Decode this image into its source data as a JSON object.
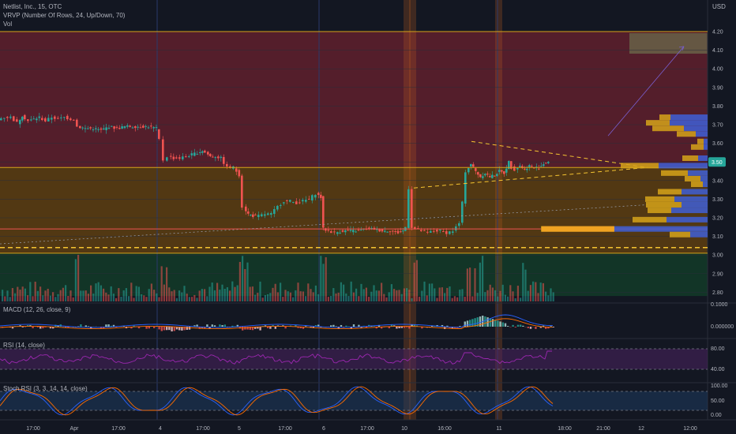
{
  "header": {
    "title": "Netlist, Inc., 15, OTC",
    "indicator_vrvp": "VRVP (Number Of Rows, 24, Up/Down, 70)",
    "indicator_vol": "Vol",
    "currency": "USD"
  },
  "panes": {
    "macd_label": "MACD (12, 26, close, 9)",
    "rsi_label": "RSI (14, close)",
    "stoch_label": "Stoch RSI (3, 3, 14, 14, close)"
  },
  "colors": {
    "background": "#131722",
    "up": "#26a69a",
    "down": "#ef5350",
    "red_zone": "#5c1f2c",
    "orange_zone": "#5a3c12",
    "green_zone": "#133828",
    "vp_up": "#3f5fd6",
    "vp_down": "#d6a31a",
    "poc_zone": "#f5a524",
    "current_price_badge": "#26a69a"
  },
  "chart_data": [
    {
      "type": "candlestick",
      "symbol": "Netlist, Inc.",
      "interval": "15",
      "exchange": "OTC",
      "y_ticks": [
        "4.20",
        "4.10",
        "4.00",
        "3.90",
        "3.80",
        "3.70",
        "3.60",
        "3.50",
        "3.40",
        "3.30",
        "3.20",
        "3.10",
        "3.00",
        "2.90",
        "2.80"
      ],
      "ylim": [
        2.78,
        4.26
      ],
      "x_ticks": [
        "17:00",
        "Apr",
        "17:00",
        "4",
        "17:00",
        "5",
        "17:00",
        "6",
        "17:00",
        "10",
        "16:00",
        "11",
        "18:00",
        "21:00",
        "12",
        "12:00"
      ],
      "current_price": "3.50",
      "price_path": [
        [
          0,
          3.73
        ],
        [
          8,
          3.74
        ],
        [
          16,
          3.74
        ],
        [
          24,
          3.71
        ],
        [
          30,
          3.75
        ],
        [
          38,
          3.72
        ],
        [
          45,
          3.73
        ],
        [
          52,
          3.74
        ],
        [
          60,
          3.72
        ],
        [
          68,
          3.74
        ],
        [
          76,
          3.73
        ],
        [
          84,
          3.74
        ],
        [
          92,
          3.73
        ],
        [
          96,
          3.73
        ],
        [
          100,
          3.69
        ],
        [
          110,
          3.68
        ],
        [
          120,
          3.68
        ],
        [
          130,
          3.67
        ],
        [
          140,
          3.69
        ],
        [
          150,
          3.68
        ],
        [
          160,
          3.69
        ],
        [
          170,
          3.69
        ],
        [
          180,
          3.69
        ],
        [
          190,
          3.69
        ],
        [
          200,
          3.68
        ],
        [
          205,
          3.62
        ],
        [
          210,
          3.51
        ],
        [
          215,
          3.53
        ],
        [
          222,
          3.52
        ],
        [
          230,
          3.52
        ],
        [
          238,
          3.53
        ],
        [
          245,
          3.54
        ],
        [
          252,
          3.55
        ],
        [
          258,
          3.56
        ],
        [
          262,
          3.55
        ],
        [
          268,
          3.53
        ],
        [
          275,
          3.53
        ],
        [
          282,
          3.52
        ],
        [
          290,
          3.47
        ],
        [
          298,
          3.47
        ],
        [
          305,
          3.43
        ],
        [
          310,
          3.26
        ],
        [
          316,
          3.22
        ],
        [
          322,
          3.21
        ],
        [
          330,
          3.21
        ],
        [
          338,
          3.22
        ],
        [
          346,
          3.22
        ],
        [
          354,
          3.26
        ],
        [
          362,
          3.29
        ],
        [
          370,
          3.29
        ],
        [
          378,
          3.28
        ],
        [
          386,
          3.29
        ],
        [
          394,
          3.3
        ],
        [
          402,
          3.33
        ],
        [
          408,
          3.31
        ],
        [
          411,
          3.14
        ],
        [
          418,
          3.13
        ],
        [
          426,
          3.12
        ],
        [
          436,
          3.13
        ],
        [
          446,
          3.13
        ],
        [
          456,
          3.13
        ],
        [
          466,
          3.14
        ],
        [
          476,
          3.14
        ],
        [
          486,
          3.13
        ],
        [
          496,
          3.13
        ],
        [
          506,
          3.12
        ],
        [
          512,
          3.13
        ],
        [
          516,
          3.15
        ],
        [
          520,
          3.36
        ],
        [
          524,
          3.15
        ],
        [
          528,
          3.14
        ],
        [
          536,
          3.13
        ],
        [
          544,
          3.12
        ],
        [
          552,
          3.13
        ],
        [
          560,
          3.13
        ],
        [
          568,
          3.12
        ],
        [
          576,
          3.13
        ],
        [
          584,
          3.17
        ],
        [
          588,
          3.28
        ],
        [
          592,
          3.45
        ],
        [
          598,
          3.49
        ],
        [
          604,
          3.45
        ],
        [
          610,
          3.42
        ],
        [
          616,
          3.44
        ],
        [
          622,
          3.42
        ],
        [
          628,
          3.43
        ],
        [
          634,
          3.45
        ],
        [
          640,
          3.44
        ],
        [
          646,
          3.5
        ],
        [
          650,
          3.47
        ],
        [
          654,
          3.46
        ],
        [
          660,
          3.48
        ],
        [
          666,
          3.46
        ],
        [
          672,
          3.48
        ],
        [
          678,
          3.47
        ],
        [
          684,
          3.47
        ],
        [
          690,
          3.49
        ],
        [
          696,
          3.5
        ]
      ],
      "volume_profile": [
        {
          "price": 3.74,
          "up": 47,
          "down": 14
        },
        {
          "price": 3.71,
          "up": 48,
          "down": 30
        },
        {
          "price": 3.68,
          "up": 30,
          "down": 40
        },
        {
          "price": 3.65,
          "up": 15,
          "down": 24
        },
        {
          "price": 3.61,
          "up": 5,
          "down": 8
        },
        {
          "price": 3.58,
          "up": 5,
          "down": 16
        },
        {
          "price": 3.52,
          "up": 12,
          "down": 20
        },
        {
          "price": 3.48,
          "up": 62,
          "down": 48
        },
        {
          "price": 3.44,
          "up": 25,
          "down": 34
        },
        {
          "price": 3.41,
          "up": 9,
          "down": 20
        },
        {
          "price": 3.38,
          "up": 6,
          "down": 15
        },
        {
          "price": 3.34,
          "up": 33,
          "down": 30
        },
        {
          "price": 3.3,
          "up": 42,
          "down": 37
        },
        {
          "price": 3.27,
          "up": 33,
          "down": 45
        },
        {
          "price": 3.24,
          "up": 46,
          "down": 30
        },
        {
          "price": 3.19,
          "up": 52,
          "down": 43
        },
        {
          "price": 3.14,
          "up": 119,
          "down": 92
        },
        {
          "price": 3.11,
          "up": 22,
          "down": 26
        }
      ],
      "zones": [
        {
          "name": "red",
          "from": 3.47,
          "to": 4.2
        },
        {
          "name": "orange",
          "from": 3.01,
          "to": 3.47
        },
        {
          "name": "green",
          "from": 2.78,
          "to": 3.01
        }
      ],
      "levels": [
        4.2,
        3.47,
        3.14,
        3.04,
        3.01
      ]
    },
    {
      "type": "line",
      "title": "MACD (12, 26, close, 9)",
      "y_ticks": [
        "0.1000",
        "0.000000"
      ]
    },
    {
      "type": "line",
      "title": "RSI (14, close)",
      "y_ticks": [
        "80.00",
        "40.00"
      ]
    },
    {
      "type": "line",
      "title": "Stoch RSI (3, 3, 14, 14, close)",
      "y_ticks": [
        "100.00",
        "50.00",
        "0.00"
      ]
    }
  ]
}
